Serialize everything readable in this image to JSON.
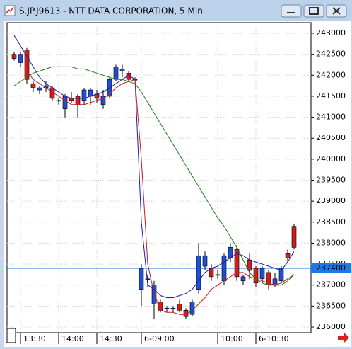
{
  "window": {
    "title": "S.JP.J9613 - NTT DATA CORPORATION, 5 Min"
  },
  "chart_data": {
    "type": "candlestick",
    "categories": [
      null,
      "13:30",
      null,
      null,
      null,
      null,
      null,
      "14:00",
      null,
      null,
      null,
      null,
      null,
      "14:30",
      null,
      null,
      null,
      null,
      null,
      null,
      "6-09:00",
      null,
      null,
      null,
      null,
      null,
      null,
      null,
      null,
      null,
      null,
      null,
      "10:00",
      null,
      null,
      null,
      null,
      null,
      "6-10:30",
      null,
      null,
      null,
      null,
      null,
      null
    ],
    "open": [
      242500,
      242300,
      242600,
      241800,
      241650,
      241700,
      241700,
      241400,
      241200,
      241450,
      241500,
      241400,
      241500,
      241550,
      241300,
      241500,
      241900,
      242100,
      242050,
      241900,
      236900,
      237150,
      236550,
      236600,
      236450,
      236450,
      236550,
      236400,
      236300,
      236900,
      237450,
      237400,
      237250,
      237100,
      237650,
      237850,
      237100,
      237600,
      237400,
      237150,
      237300,
      237000,
      237100,
      237750,
      238400
    ],
    "high": [
      242550,
      242550,
      242650,
      241850,
      241750,
      241850,
      241750,
      241450,
      241550,
      241600,
      241550,
      241700,
      241700,
      241650,
      241650,
      241950,
      242250,
      242250,
      242100,
      241950,
      237500,
      237250,
      237100,
      236650,
      236500,
      236500,
      236650,
      236450,
      236650,
      238000,
      237800,
      237500,
      237350,
      237750,
      238000,
      237950,
      237250,
      237750,
      237450,
      237450,
      237350,
      237300,
      237450,
      237850,
      238450
    ],
    "low": [
      242350,
      242200,
      241800,
      241600,
      241550,
      241600,
      241400,
      241300,
      241000,
      241350,
      241000,
      241300,
      241300,
      241350,
      241200,
      241450,
      241850,
      241950,
      241850,
      241850,
      236500,
      236950,
      236200,
      236350,
      236350,
      236350,
      236350,
      236200,
      236250,
      236800,
      237350,
      237100,
      237150,
      237000,
      237550,
      237100,
      237000,
      237150,
      236950,
      237050,
      236900,
      236950,
      237050,
      237550,
      237850
    ],
    "close": [
      242400,
      242500,
      241900,
      241700,
      241700,
      241750,
      241450,
      241400,
      241500,
      241400,
      241300,
      241650,
      241650,
      241450,
      241500,
      241900,
      242200,
      242150,
      241900,
      241900,
      237400,
      237150,
      237000,
      236400,
      236450,
      236450,
      236400,
      236250,
      236600,
      237700,
      237700,
      237200,
      237250,
      237700,
      237900,
      237200,
      237200,
      237350,
      237050,
      237400,
      237000,
      237150,
      237400,
      237650,
      237900
    ],
    "series": [
      {
        "color": "#1a1ab0",
        "values": [
          242950,
          242700,
          242450,
          242200,
          241950,
          241800,
          241700,
          241600,
          241500,
          241450,
          241450,
          241450,
          241500,
          241550,
          241600,
          241700,
          241800,
          241900,
          242000,
          241900,
          238500,
          237000,
          236900,
          236750,
          236700,
          236700,
          236750,
          236800,
          236900,
          237100,
          237300,
          237400,
          237450,
          237550,
          237650,
          237750,
          237700,
          237600,
          237550,
          237500,
          237450,
          237400,
          237350,
          237550,
          237800
        ]
      },
      {
        "color": "#cc1a1a",
        "values": [
          null,
          null,
          242100,
          241900,
          241800,
          241700,
          241600,
          241500,
          241400,
          241300,
          241300,
          241300,
          241350,
          241400,
          241450,
          241550,
          241700,
          241800,
          241850,
          241900,
          240000,
          237500,
          236800,
          236400,
          236350,
          236350,
          236300,
          236300,
          236400,
          236550,
          236700,
          236900,
          237000,
          237100,
          237200,
          237300,
          237300,
          237200,
          237150,
          237100,
          237050,
          237000,
          237050,
          237150,
          237250
        ]
      },
      {
        "color": "#1a7a1a",
        "values": [
          241750,
          241850,
          241950,
          242050,
          242100,
          242150,
          242200,
          242200,
          242200,
          242200,
          242150,
          242150,
          242100,
          242050,
          242000,
          241950,
          241900,
          241900,
          241850,
          241800,
          241600,
          241350,
          241100,
          240850,
          240600,
          240350,
          240100,
          239850,
          239600,
          239350,
          239100,
          238850,
          238600,
          238400,
          238150,
          237900,
          237600,
          237300,
          237150,
          237050,
          237000,
          237000,
          237000,
          237100,
          237250
        ]
      }
    ],
    "up_color": "#1e50d0",
    "down_color": "#d01e1e",
    "current_price": 237400,
    "current_price_color": "#1e78e6",
    "ylim": [
      235865,
      243253
    ],
    "yticks": [
      236000,
      236500,
      237000,
      237500,
      238000,
      238500,
      239000,
      239500,
      240000,
      240500,
      241000,
      241500,
      242000,
      242500,
      243000
    ],
    "grid": true
  }
}
